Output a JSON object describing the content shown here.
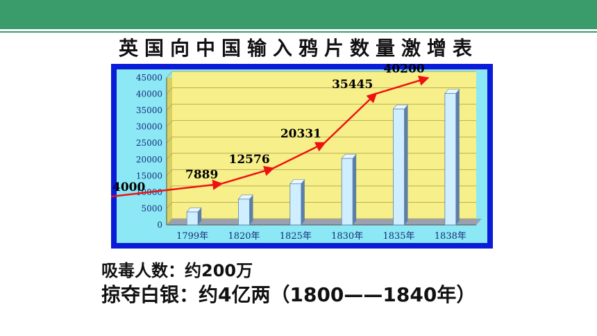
{
  "slide": {
    "title": "英国向中国输入鸦片数量激增表",
    "captions": [
      "吸毒人数：约200万",
      "掠夺白银：约4亿两（1800——1840年）"
    ]
  },
  "colors": {
    "header_band": "#3a9c6a",
    "frame": "#0a1cd8",
    "plot_bg": "#f7f08a",
    "bar_front": "#cfeeff",
    "bar_side": "#5b7fa8",
    "trend_line": "#ee1111"
  },
  "chart_data": {
    "type": "bar",
    "title": "",
    "xlabel": "",
    "ylabel": "",
    "categories": [
      "1799年",
      "1820年",
      "1825年",
      "1830年",
      "1835年",
      "1838年"
    ],
    "values": [
      4000,
      7889,
      12576,
      20331,
      35445,
      40200
    ],
    "yticks": [
      0,
      5000,
      10000,
      15000,
      20000,
      25000,
      30000,
      35000,
      40000,
      45000
    ],
    "ylim": [
      0,
      45000
    ],
    "grid": true,
    "bar_style": "3d",
    "trend_line": {
      "color": "red",
      "labels": [
        "4000",
        "7889",
        "12576",
        "20331",
        "35445",
        "40200"
      ]
    }
  }
}
